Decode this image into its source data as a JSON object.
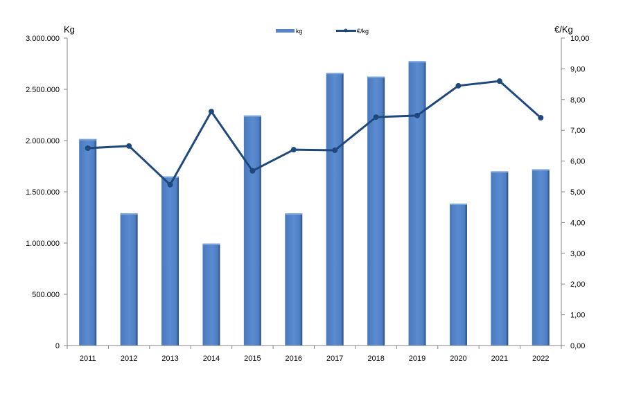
{
  "chart_data": {
    "type": "bar+line",
    "categories": [
      "2011",
      "2012",
      "2013",
      "2014",
      "2015",
      "2016",
      "2017",
      "2018",
      "2019",
      "2020",
      "2021",
      "2022"
    ],
    "series": [
      {
        "name": "kg",
        "type": "bar",
        "axis": "left",
        "color": "#5585C8",
        "values": [
          2015000,
          1290000,
          1650000,
          995000,
          2245000,
          1290000,
          2660000,
          2625000,
          2775000,
          1385000,
          1700000,
          1720000
        ]
      },
      {
        "name": "€/kg",
        "type": "line",
        "axis": "right",
        "color": "#1F497D",
        "values": [
          6.42,
          6.49,
          5.23,
          7.61,
          5.68,
          6.37,
          6.35,
          7.43,
          7.48,
          8.45,
          8.6,
          7.41
        ]
      }
    ],
    "ylabel": "Kg",
    "y2label": "€/Kg",
    "ylim": [
      0,
      3000000
    ],
    "y2lim": [
      0,
      10
    ],
    "yticks": [
      "0",
      "500.000",
      "1.000.000",
      "1.500.000",
      "2.000.000",
      "2.500.000",
      "3.000.000"
    ],
    "y2ticks": [
      "0,00",
      "1,00",
      "2,00",
      "3,00",
      "4,00",
      "5,00",
      "6,00",
      "7,00",
      "8,00",
      "9,00",
      "10,00"
    ],
    "grid": false,
    "legend": "top-center"
  }
}
